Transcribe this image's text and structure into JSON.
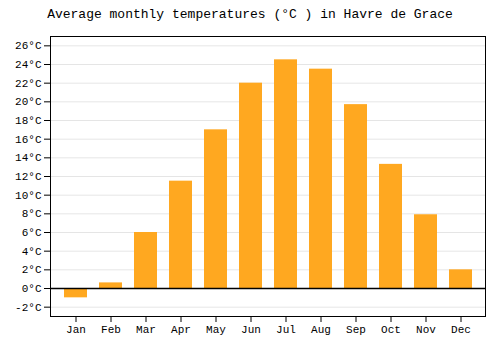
{
  "chart_data": {
    "type": "bar",
    "title": "Average monthly temperatures (°C ) in Havre de Grace",
    "categories": [
      "Jan",
      "Feb",
      "Mar",
      "Apr",
      "May",
      "Jun",
      "Jul",
      "Aug",
      "Sep",
      "Oct",
      "Nov",
      "Dec"
    ],
    "values": [
      -1.0,
      0.6,
      6.0,
      11.5,
      17.0,
      22.0,
      24.5,
      23.5,
      19.7,
      13.3,
      7.9,
      2.0
    ],
    "color": "#FFA820",
    "ylim": [
      -3,
      27
    ],
    "yticks": [
      {
        "value": -2,
        "label": "-2°C"
      },
      {
        "value": 0,
        "label": "0°C"
      },
      {
        "value": 2,
        "label": "2°C"
      },
      {
        "value": 4,
        "label": "4°C"
      },
      {
        "value": 6,
        "label": "6°C"
      },
      {
        "value": 8,
        "label": "8°C"
      },
      {
        "value": 10,
        "label": "10°C"
      },
      {
        "value": 12,
        "label": "12°C"
      },
      {
        "value": 14,
        "label": "14°C"
      },
      {
        "value": 16,
        "label": "16°C"
      },
      {
        "value": 18,
        "label": "18°C"
      },
      {
        "value": 20,
        "label": "20°C"
      },
      {
        "value": 22,
        "label": "22°C"
      },
      {
        "value": 24,
        "label": "24°C"
      },
      {
        "value": 26,
        "label": "26°C"
      }
    ],
    "grid": true
  }
}
